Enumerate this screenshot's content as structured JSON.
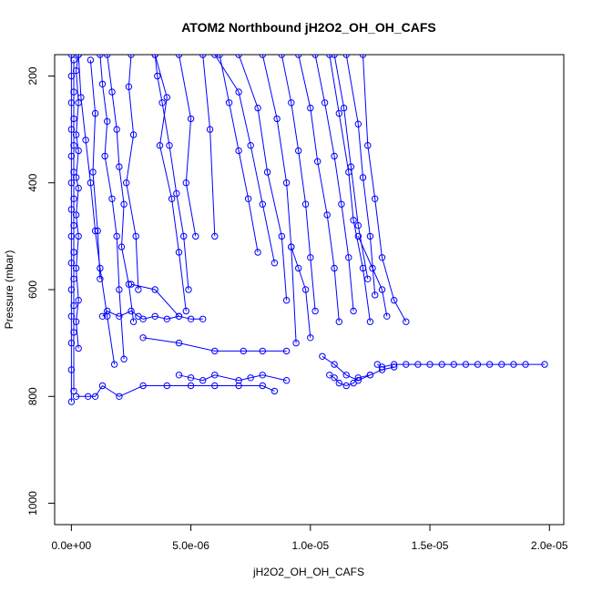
{
  "chart_data": {
    "type": "line",
    "title": "ATOM2 Northbound jH2O2_OH_OH_CAFS",
    "xlabel": "jH2O2_OH_OH_CAFS",
    "ylabel": "Pressure (mbar)",
    "xlim": [
      -7e-07,
      2.06e-05
    ],
    "ylim": [
      1040,
      160
    ],
    "y_axis": "inverted",
    "grid": false,
    "legend": "none",
    "marker": "open-circle",
    "color": "#0000ff",
    "x_ticks": [
      {
        "value": 0.0,
        "label": "0.0e+00"
      },
      {
        "value": 5e-06,
        "label": "5.0e-06"
      },
      {
        "value": 1e-05,
        "label": "1.0e-05"
      },
      {
        "value": 1.5e-05,
        "label": "1.5e-05"
      },
      {
        "value": 2e-05,
        "label": "2.0e-05"
      }
    ],
    "y_ticks": [
      {
        "value": 200,
        "label": "200"
      },
      {
        "value": 400,
        "label": "400"
      },
      {
        "value": 600,
        "label": "600"
      },
      {
        "value": 800,
        "label": "800"
      },
      {
        "value": 1000,
        "label": "1000"
      }
    ],
    "series": [
      {
        "x": [
          0.0,
          0.0,
          0.0,
          0.0,
          0.0,
          0.0,
          0.0,
          0.0,
          0.0,
          0.0,
          0.0,
          0.0,
          0.0,
          0.0
        ],
        "y": [
          160,
          200,
          250,
          300,
          350,
          400,
          450,
          500,
          550,
          600,
          650,
          700,
          750,
          810
        ]
      },
      {
        "x": [
          1e-07,
          1e-07,
          1e-07,
          1e-07,
          1e-07,
          1e-07,
          1e-07,
          1e-07,
          1e-07,
          1e-07,
          1e-07,
          1e-07
        ],
        "y": [
          170,
          230,
          280,
          330,
          380,
          430,
          480,
          530,
          580,
          630,
          680,
          790
        ]
      },
      {
        "x": [
          3e-07,
          2e-07,
          3e-07,
          2e-07,
          3e-07,
          2e-07,
          3e-07,
          2e-07,
          3e-07,
          2e-07,
          3e-07,
          2e-07,
          3e-07
        ],
        "y": [
          160,
          190,
          250,
          310,
          340,
          390,
          410,
          460,
          500,
          560,
          620,
          660,
          710
        ]
      },
      {
        "x": [
          3e-07,
          4e-07,
          6e-07,
          8e-07,
          1e-06,
          1.2e-06,
          1.5e-06,
          1.8e-06
        ],
        "y": [
          160,
          240,
          320,
          400,
          490,
          560,
          650,
          740
        ]
      },
      {
        "x": [
          8e-07,
          1e-06,
          9e-07,
          1.1e-06,
          1.2e-06
        ],
        "y": [
          170,
          270,
          380,
          490,
          580
        ]
      },
      {
        "x": [
          1.2e-06,
          1.3e-06,
          1.5e-06,
          1.4e-06,
          1.7e-06,
          1.9e-06,
          2e-06,
          2.2e-06
        ],
        "y": [
          160,
          215,
          285,
          350,
          430,
          500,
          600,
          730
        ]
      },
      {
        "x": [
          1.5e-06,
          1.7e-06,
          1.9e-06,
          2e-06,
          2.2e-06,
          2.1e-06,
          2.4e-06,
          2.6e-06
        ],
        "y": [
          160,
          230,
          300,
          370,
          440,
          520,
          590,
          660
        ]
      },
      {
        "x": [
          2.5e-06,
          2.4e-06,
          2.6e-06,
          2.3e-06,
          2.7e-06,
          2.8e-06
        ],
        "y": [
          160,
          220,
          310,
          400,
          500,
          600
        ]
      },
      {
        "x": [
          3.5e-06,
          4e-06,
          3.7e-06,
          4.2e-06,
          4.5e-06,
          4.8e-06
        ],
        "y": [
          160,
          240,
          330,
          430,
          530,
          640
        ]
      },
      {
        "x": [
          4.5e-06,
          5e-06,
          4.8e-06,
          5.2e-06
        ],
        "y": [
          160,
          280,
          400,
          500
        ]
      },
      {
        "x": [
          3.5e-06,
          3.6e-06,
          3.8e-06,
          4.1e-06,
          4.4e-06,
          4.7e-06,
          4.9e-06
        ],
        "y": [
          160,
          200,
          250,
          330,
          420,
          500,
          600
        ]
      },
      {
        "x": [
          5.5e-06,
          5.8e-06,
          6e-06
        ],
        "y": [
          160,
          300,
          500
        ]
      },
      {
        "x": [
          6e-06,
          7e-06,
          7.5e-06,
          8e-06,
          8.5e-06
        ],
        "y": [
          160,
          230,
          330,
          440,
          550
        ]
      },
      {
        "x": [
          7e-06,
          7.8e-06,
          8.2e-06,
          8.8e-06,
          9e-06
        ],
        "y": [
          160,
          260,
          380,
          500,
          620
        ]
      },
      {
        "x": [
          8e-06,
          8.6e-06,
          9e-06,
          9.2e-06,
          9.4e-06
        ],
        "y": [
          160,
          280,
          400,
          520,
          700
        ]
      },
      {
        "x": [
          8.8e-06,
          9.2e-06,
          9.5e-06,
          9.8e-06,
          1e-05,
          1.02e-05
        ],
        "y": [
          160,
          250,
          340,
          440,
          540,
          640
        ]
      },
      {
        "x": [
          9.5e-06,
          1e-05,
          1.03e-05,
          1.07e-05,
          1.1e-05,
          1.12e-05
        ],
        "y": [
          160,
          260,
          360,
          460,
          560,
          660
        ]
      },
      {
        "x": [
          1.02e-05,
          1.06e-05,
          1.1e-05,
          1.13e-05,
          1.16e-05,
          1.18e-05
        ],
        "y": [
          160,
          250,
          350,
          440,
          540,
          640
        ]
      },
      {
        "x": [
          1.08e-05,
          1.12e-05,
          1.16e-05,
          1.18e-05,
          1.22e-05,
          1.25e-05
        ],
        "y": [
          160,
          270,
          380,
          470,
          560,
          660
        ]
      },
      {
        "x": [
          1.1e-05,
          1.14e-05,
          1.17e-05,
          1.2e-05,
          1.24e-05
        ],
        "y": [
          160,
          260,
          370,
          480,
          580
        ]
      },
      {
        "x": [
          1.15e-05,
          1.2e-05,
          1.22e-05,
          1.25e-05,
          1.27e-05
        ],
        "y": [
          160,
          290,
          390,
          500,
          610
        ]
      },
      {
        "x": [
          1.22e-05,
          1.24e-05,
          1.27e-05,
          1.3e-05,
          1.35e-05,
          1.4e-05
        ],
        "y": [
          160,
          330,
          430,
          540,
          620,
          660
        ]
      },
      {
        "x": [
          6.2e-06,
          6.6e-06,
          7e-06,
          7.4e-06,
          7.8e-06
        ],
        "y": [
          160,
          250,
          340,
          430,
          530
        ]
      },
      {
        "x": [
          2e-07,
          7e-07,
          1e-06,
          1.3e-06,
          2e-06,
          3e-06,
          4e-06,
          5e-06,
          6e-06,
          7e-06,
          8e-06,
          8.5e-06
        ],
        "y": [
          800,
          800,
          800,
          780,
          800,
          780,
          780,
          780,
          780,
          780,
          780,
          790
        ]
      },
      {
        "x": [
          1.3e-06,
          1.5e-06,
          2e-06,
          2.5e-06,
          2.8e-06,
          3e-06,
          3.5e-06,
          4e-06,
          4.5e-06,
          5e-06,
          5.5e-06
        ],
        "y": [
          650,
          640,
          650,
          640,
          650,
          655,
          650,
          655,
          650,
          655,
          655
        ]
      },
      {
        "x": [
          3e-06,
          4.5e-06,
          6e-06,
          7.2e-06,
          8e-06,
          9e-06
        ],
        "y": [
          690,
          700,
          715,
          715,
          715,
          715
        ]
      },
      {
        "x": [
          4.5e-06,
          5e-06,
          5.5e-06,
          6e-06,
          7e-06,
          7.5e-06,
          8e-06,
          9e-06
        ],
        "y": [
          760,
          765,
          770,
          760,
          770,
          765,
          760,
          770
        ]
      },
      {
        "x": [
          1.05e-05,
          1.1e-05,
          1.15e-05,
          1.2e-05,
          1.25e-05,
          1.3e-05,
          1.35e-05
        ],
        "y": [
          725,
          740,
          760,
          770,
          760,
          750,
          745
        ]
      },
      {
        "x": [
          1.08e-05,
          1.1e-05,
          1.12e-05,
          1.15e-05,
          1.18e-05,
          1.2e-05,
          1.25e-05
        ],
        "y": [
          760,
          765,
          775,
          780,
          775,
          765,
          760
        ]
      },
      {
        "x": [
          1.28e-05,
          1.3e-05,
          1.35e-05,
          1.4e-05,
          1.45e-05,
          1.5e-05,
          1.55e-05,
          1.6e-05,
          1.65e-05,
          1.7e-05,
          1.75e-05,
          1.8e-05,
          1.85e-05,
          1.9e-05,
          1.98e-05
        ],
        "y": [
          740,
          745,
          740,
          740,
          740,
          740,
          740,
          740,
          740,
          740,
          740,
          740,
          740,
          740,
          740
        ]
      },
      {
        "x": [
          9.2e-06,
          9.5e-06,
          9.8e-06,
          1e-05
        ],
        "y": [
          520,
          560,
          600,
          690
        ]
      },
      {
        "x": [
          1.2e-05,
          1.26e-05,
          1.3e-05,
          1.32e-05
        ],
        "y": [
          500,
          560,
          600,
          650
        ]
      },
      {
        "x": [
          2.5e-06,
          3.5e-06,
          4.5e-06
        ],
        "y": [
          590,
          600,
          650
        ]
      }
    ]
  }
}
